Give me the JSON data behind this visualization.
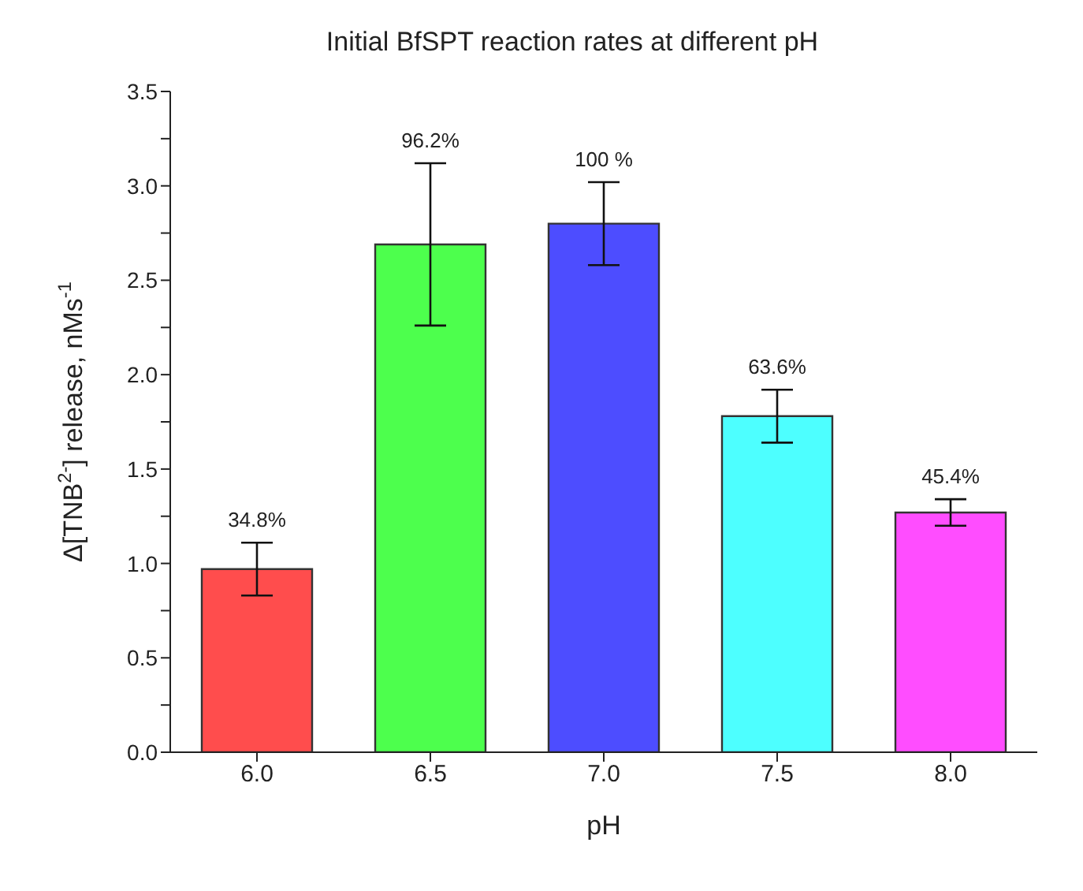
{
  "chart_data": {
    "type": "bar",
    "title": "Initial BfSPT reaction rates at different pH",
    "xlabel": "pH",
    "ylabel": "Δ[TNB$^{2-}$] release, nMs$^{-1}$",
    "categories": [
      "6.0",
      "6.5",
      "7.0",
      "7.5",
      "8.0"
    ],
    "values": [
      0.97,
      2.69,
      2.8,
      1.78,
      1.27
    ],
    "errors": [
      0.14,
      0.43,
      0.22,
      0.14,
      0.07
    ],
    "colors": [
      "#ff4d4d",
      "#4dff4d",
      "#4d4dff",
      "#4dffff",
      "#ff4dff"
    ],
    "annotations": [
      {
        "text": "34.8%",
        "x": "6.0",
        "y": 1.11
      },
      {
        "text": "96.2%",
        "x": "6.5",
        "y": 3.12
      },
      {
        "text": "100 %",
        "x": "7.0",
        "y": 3.02
      },
      {
        "text": "63.6%",
        "x": "7.5",
        "y": 1.92
      },
      {
        "text": "45.4%",
        "x": "8.0",
        "y": 1.34
      }
    ],
    "ylim": [
      0,
      3.5
    ],
    "yticks": [
      {
        "value": 0,
        "label": "0.0"
      },
      {
        "value": 0.25,
        "label": null
      },
      {
        "value": 0.5,
        "label": "0.5"
      },
      {
        "value": 0.75,
        "label": null
      },
      {
        "value": 1,
        "label": "1.0"
      },
      {
        "value": 1.25,
        "label": null
      },
      {
        "value": 1.5,
        "label": "1.5"
      },
      {
        "value": 1.75,
        "label": null
      },
      {
        "value": 2,
        "label": "2.0"
      },
      {
        "value": 2.25,
        "label": null
      },
      {
        "value": 2.5,
        "label": "2.5"
      },
      {
        "value": 2.75,
        "label": null
      },
      {
        "value": 3,
        "label": "3.0"
      },
      {
        "value": 3.25,
        "label": null
      },
      {
        "value": 3.5,
        "label": "3.5"
      }
    ],
    "grid": false,
    "legend": false
  }
}
